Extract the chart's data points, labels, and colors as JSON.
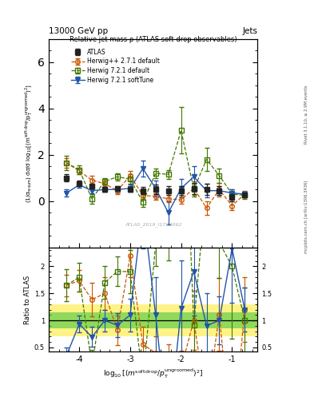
{
  "title_top": "13000 GeV pp",
  "title_right": "Jets",
  "plot_title": "Relative jet mass ρ (ATLAS soft-drop observables)",
  "watermark": "ATLAS_2019_I1772062",
  "right_label_top": "Rivet 3.1.10, ≥ 2.9M events",
  "right_label_bot": "mcplots.cern.ch [arXiv:1306.3436]",
  "ylabel_main": "(1/σᵣᵉˢᵘᵐ) dσ/d log₁₀[(mˢᵒᶠᵗ ᵈʳᵒᵖ/pᵀᵘⁿᵏʳᵒᵒᵐᵉᵈ)²]",
  "ylabel_ratio": "Ratio to ATLAS",
  "xlabel": "log₁₀[(mˢᵒᶠᵗ ᵈʳᵒᵖ/pᵀᵘⁿᵏʳᵒᵒᵐᵉᵈ)²]",
  "x_values": [
    -4.25,
    -4.0,
    -3.75,
    -3.5,
    -3.25,
    -3.0,
    -2.75,
    -2.5,
    -2.25,
    -2.0,
    -1.75,
    -1.5,
    -1.25,
    -1.0,
    -0.75
  ],
  "atlas_y": [
    1.0,
    0.75,
    0.65,
    0.5,
    0.55,
    0.5,
    0.45,
    0.5,
    0.45,
    0.45,
    0.55,
    0.5,
    0.45,
    0.15,
    0.25
  ],
  "atlas_yerr": [
    0.15,
    0.12,
    0.1,
    0.1,
    0.1,
    0.1,
    0.15,
    0.2,
    0.2,
    0.2,
    0.25,
    0.25,
    0.2,
    0.15,
    0.1
  ],
  "hppdef_y": [
    1.65,
    1.3,
    0.9,
    0.75,
    0.45,
    1.1,
    0.25,
    0.2,
    0.1,
    0.05,
    0.55,
    -0.3,
    0.5,
    -0.2,
    0.3
  ],
  "hppdef_yerr": [
    0.2,
    0.15,
    0.2,
    0.15,
    0.15,
    0.2,
    0.15,
    0.15,
    0.15,
    0.15,
    0.3,
    0.3,
    0.3,
    0.2,
    0.15
  ],
  "h721def_y": [
    1.65,
    1.35,
    0.1,
    0.85,
    1.05,
    0.95,
    -0.05,
    1.2,
    1.15,
    3.05,
    0.5,
    1.8,
    1.1,
    0.3,
    0.25
  ],
  "h721def_yerr": [
    0.3,
    0.2,
    0.2,
    0.15,
    0.15,
    0.2,
    0.2,
    0.2,
    0.2,
    1.0,
    0.3,
    0.5,
    0.3,
    0.2,
    0.15
  ],
  "h721soft_y": [
    0.35,
    0.7,
    0.45,
    0.5,
    0.5,
    0.55,
    1.4,
    0.55,
    -0.5,
    0.55,
    1.05,
    0.45,
    0.45,
    0.35,
    0.3
  ],
  "h721soft_yerr": [
    0.15,
    0.12,
    0.12,
    0.1,
    0.12,
    0.15,
    0.35,
    0.35,
    0.5,
    0.4,
    0.45,
    0.3,
    0.2,
    0.15,
    0.1
  ],
  "atlas_color": "#222222",
  "hppdef_color": "#cc5500",
  "h721def_color": "#447700",
  "h721soft_color": "#2255aa",
  "ylim_main": [
    -2.0,
    7.0
  ],
  "ylim_ratio": [
    0.42,
    2.35
  ],
  "xlim": [
    -4.6,
    -0.5
  ],
  "xticks": [
    -4,
    -3,
    -2,
    -1
  ],
  "yticks_main": [
    0,
    2,
    4,
    6
  ],
  "yticks_ratio": [
    0.5,
    1.0,
    1.5,
    2.0
  ],
  "band_green": [
    0.85,
    1.15
  ],
  "band_yellow": [
    0.7,
    1.3
  ]
}
